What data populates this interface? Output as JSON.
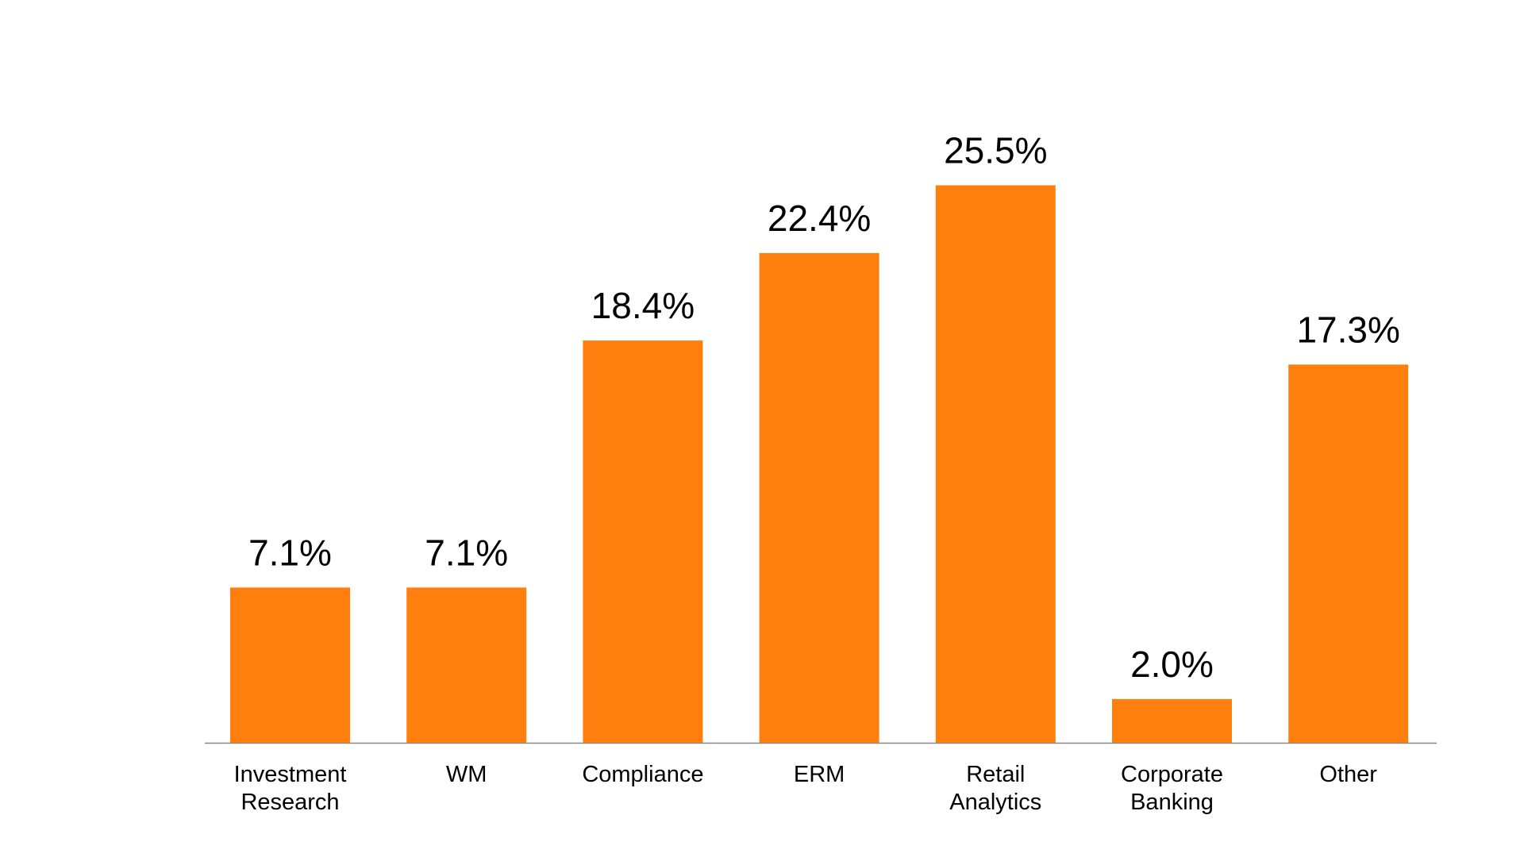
{
  "colors": {
    "bar": "#FF7F0E",
    "axis": "#888888",
    "text": "#000000",
    "background": "#FFFFFF"
  },
  "chart_data": {
    "type": "bar",
    "title": "",
    "xlabel": "",
    "ylabel": "",
    "grid": false,
    "legend": "none",
    "ylim": [
      0,
      28
    ],
    "categories": [
      [
        "Investment",
        "Research"
      ],
      [
        "WM"
      ],
      [
        "Compliance"
      ],
      [
        "ERM"
      ],
      [
        "Retail",
        "Analytics"
      ],
      [
        "Corporate",
        "Banking"
      ],
      [
        "Other"
      ]
    ],
    "values": [
      7.1,
      7.1,
      18.4,
      22.4,
      25.5,
      2.0,
      17.3
    ],
    "value_labels": [
      "7.1%",
      "7.1%",
      "18.4%",
      "22.4%",
      "25.5%",
      "2.0%",
      "17.3%"
    ]
  }
}
